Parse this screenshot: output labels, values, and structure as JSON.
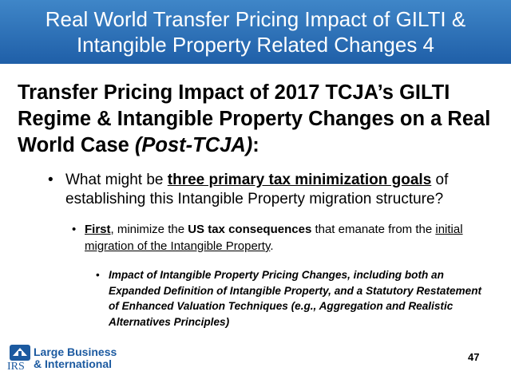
{
  "header": {
    "title_lines": [
      "Real World Transfer Pricing Impact of GILTI &",
      "Intangible Property Related Changes 4"
    ]
  },
  "heading": {
    "text": "Transfer Pricing Impact of 2017 TCJA’s GILTI Regime & Intangible Property Changes on a Real World Case ",
    "emphasis": "(Post-TCJA)",
    "end": ":"
  },
  "bullets": [
    {
      "runs": [
        "What might be ",
        "three primary tax minimization goals",
        " of establishing this Intangible Property migration structure?"
      ]
    },
    {
      "runs": [
        "First",
        ", minimize the ",
        "US tax consequences",
        " that emanate from the ",
        "initial migration of the Intangible Property",
        "."
      ]
    },
    {
      "runs": [
        "Impact of Intangible Property Pricing Changes, including both an Expanded Definition of Intangible Property, and a Statutory Restatement of Enhanced Valuation Techniques (e.g., Aggregation and Realistic Alternatives Principles)"
      ]
    }
  ],
  "footer": {
    "logo_lines": [
      "Large Business",
      "& International"
    ],
    "logo_mark": "IRS",
    "page_number": "47"
  }
}
